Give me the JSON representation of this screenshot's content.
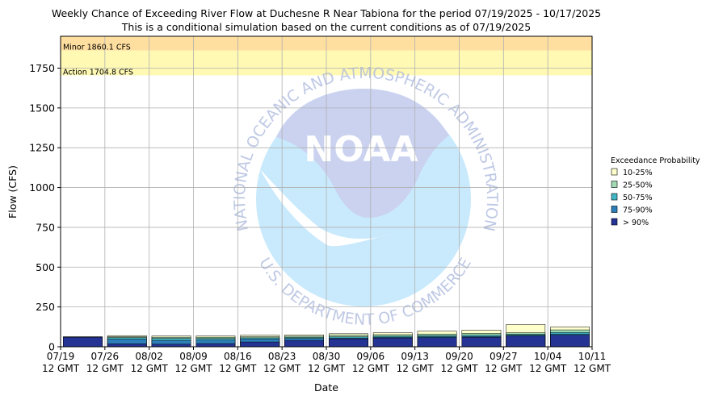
{
  "chart_data": {
    "type": "bar",
    "title": "Weekly Chance of Exceeding River Flow at Duchesne R Near Tabiona for the period 07/19/2025 - 10/17/2025",
    "subtitle": "This is a conditional simulation based on the current conditions as of 07/19/2025",
    "xlabel": "Date",
    "ylabel": "Flow (CFS)",
    "ylim": [
      0,
      1950
    ],
    "yticks": [
      0,
      250,
      500,
      750,
      1000,
      1250,
      1500,
      1750
    ],
    "grid": true,
    "xtick_dates": [
      "07/19",
      "07/26",
      "08/02",
      "08/09",
      "08/16",
      "08/23",
      "08/30",
      "09/06",
      "09/13",
      "09/20",
      "09/27",
      "10/04",
      "10/11"
    ],
    "xtick_suffix": "12 GMT",
    "categories": [
      "07/19",
      "07/26",
      "08/02",
      "08/09",
      "08/16",
      "08/23",
      "08/30",
      "09/06",
      "09/13",
      "09/20",
      "09/27",
      "10/04"
    ],
    "series": [
      {
        "name": "> 90%",
        "color": "#253494",
        "values": [
          60,
          18,
          16,
          20,
          30,
          40,
          50,
          55,
          58,
          60,
          68,
          72
        ]
      },
      {
        "name": "75-90%",
        "color": "#2c7fb8",
        "values": [
          60,
          48,
          40,
          42,
          48,
          52,
          55,
          60,
          62,
          64,
          72,
          80
        ]
      },
      {
        "name": "50-75%",
        "color": "#41b6c4",
        "values": [
          61,
          57,
          52,
          52,
          56,
          58,
          62,
          66,
          70,
          72,
          78,
          90
        ]
      },
      {
        "name": "25-50%",
        "color": "#a1dab4",
        "values": [
          62,
          63,
          60,
          60,
          63,
          66,
          72,
          76,
          80,
          84,
          88,
          106
        ]
      },
      {
        "name": "10-25%",
        "color": "#ffffcc",
        "values": [
          63,
          70,
          68,
          68,
          72,
          74,
          82,
          88,
          98,
          104,
          140,
          124
        ]
      }
    ],
    "thresholds": [
      {
        "label": "Minor 1860.1 CFS",
        "value": 1860.1,
        "color": "#ffdf9f"
      },
      {
        "label": "Action 1704.8 CFS",
        "value": 1704.8,
        "color": "#fff9b4"
      }
    ],
    "legend": {
      "title": "Exceedance Probability",
      "placement": "right",
      "entries": [
        "10-25%",
        "25-50%",
        "50-75%",
        "75-90%",
        "> 90%"
      ]
    }
  },
  "watermark": {
    "text_top": "NATIONAL OCEANIC AND ATMOSPHERIC ADMINISTRATION",
    "text_bottom": "U.S. DEPARTMENT OF COMMERCE",
    "logo_text": "NOAA"
  }
}
